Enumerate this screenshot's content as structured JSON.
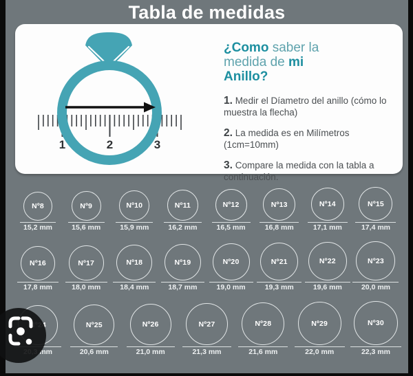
{
  "title": "Tabla de medidas",
  "panel": {
    "heading": {
      "lead_bold": "¿Como",
      "middle": " saber la medida de ",
      "tail_bold": "mi Anillo?"
    },
    "steps": [
      {
        "num": "1.",
        "text": " Medir el Díametro del anillo (cómo lo muestra la flecha)"
      },
      {
        "num": "2.",
        "text": " La medida es en Milímetros (1cm=10mm)"
      },
      {
        "num": "3.",
        "text": " Compare la medida con la tabla a continuación."
      }
    ],
    "ruler_numbers": [
      "1",
      "2",
      "3"
    ]
  },
  "size_table": {
    "columns": 8,
    "sizes": [
      {
        "label": "Nº8",
        "mm": "15,2 mm"
      },
      {
        "label": "Nº9",
        "mm": "15,6 mm"
      },
      {
        "label": "Nº10",
        "mm": "15,9 mm"
      },
      {
        "label": "Nº11",
        "mm": "16,2 mm"
      },
      {
        "label": "Nº12",
        "mm": "16,5 mm"
      },
      {
        "label": "Nº13",
        "mm": "16,8 mm"
      },
      {
        "label": "Nº14",
        "mm": "17,1 mm"
      },
      {
        "label": "Nº15",
        "mm": "17,4 mm"
      },
      {
        "label": "Nº16",
        "mm": "17,8 mm"
      },
      {
        "label": "Nº17",
        "mm": "18,0 mm"
      },
      {
        "label": "Nº18",
        "mm": "18,4 mm"
      },
      {
        "label": "Nº19",
        "mm": "18,7 mm"
      },
      {
        "label": "Nº20",
        "mm": "19,0 mm"
      },
      {
        "label": "Nº21",
        "mm": "19,3 mm"
      },
      {
        "label": "Nº22",
        "mm": "19,6 mm"
      },
      {
        "label": "Nº23",
        "mm": "20,0 mm"
      },
      {
        "label": "Nº24",
        "mm": "20,3 mm"
      },
      {
        "label": "Nº25",
        "mm": "20,6 mm"
      },
      {
        "label": "Nº26",
        "mm": "21,0 mm"
      },
      {
        "label": "Nº27",
        "mm": "21,3 mm"
      },
      {
        "label": "Nº28",
        "mm": "21,6 mm"
      },
      {
        "label": "Nº29",
        "mm": "22,0 mm"
      },
      {
        "label": "Nº30",
        "mm": "22,3 mm"
      }
    ]
  },
  "overlay": {
    "icon": "google-lens-icon"
  },
  "colors": {
    "background_gray": "#6f777b",
    "frame_black": "#0b0b0b",
    "panel_white": "#fdfdfd",
    "ring_teal": "#45a4b4",
    "heading_teal_bold": "#1d8fa0",
    "heading_teal_light": "#5fa3ad",
    "step_text": "#4b4f52",
    "ruler_tick": "#3e4246",
    "circle_outline": "#e2e6e7",
    "label_white": "#ffffff"
  }
}
